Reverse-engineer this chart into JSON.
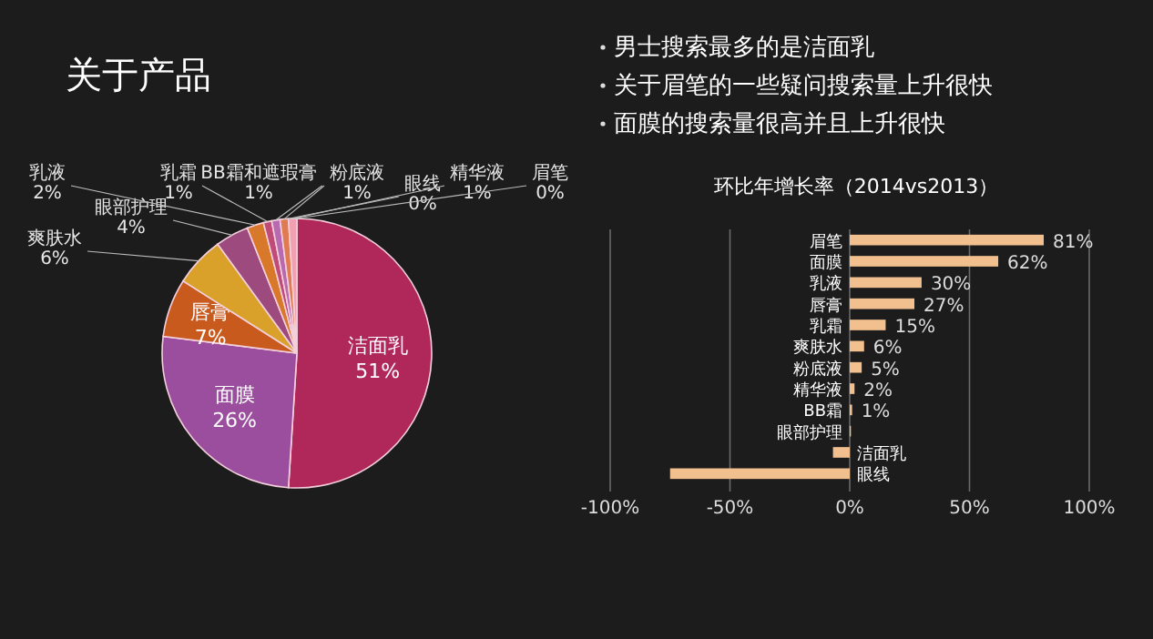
{
  "chart_data": [
    {
      "type": "pie",
      "title": "关于产品",
      "categories": [
        "洁面乳",
        "面膜",
        "唇膏",
        "爽肤水",
        "眼部护理",
        "乳液",
        "乳霜",
        "BB霜和遮瑕膏",
        "粉底液",
        "眼线",
        "精华液",
        "眉笔"
      ],
      "values": [
        51,
        26,
        7,
        6,
        4,
        2,
        1,
        1,
        1,
        0,
        1,
        0
      ],
      "colors": [
        "#b0285a",
        "#9b4d9e",
        "#c85a1e",
        "#d9a12a",
        "#9d4a7e",
        "#d8782a",
        "#c04a78",
        "#b86ab0",
        "#e07a50",
        "#e8b070",
        "#f0a0b0",
        "#f0d0d0"
      ],
      "value_labels": [
        "51%",
        "26%",
        "7%",
        "6%",
        "4%",
        "2%",
        "1%",
        "1%",
        "1%",
        "0%",
        "1%",
        "0%"
      ]
    },
    {
      "type": "bar",
      "orientation": "horizontal",
      "title": "环比年增长率（2014vs2013）",
      "annotations": [
        "男士搜索最多的是洁面乳",
        "关于眉笔的一些疑问搜索量上升很快",
        "面膜的搜索量很高并且上升很快"
      ],
      "categories": [
        "眉笔",
        "面膜",
        "乳液",
        "唇膏",
        "乳霜",
        "爽肤水",
        "粉底液",
        "精华液",
        "BB霜",
        "眼部护理",
        "洁面乳",
        "眼线"
      ],
      "values": [
        81,
        62,
        30,
        27,
        15,
        6,
        5,
        2,
        1,
        0.5,
        -7,
        -75
      ],
      "value_labels": [
        "81%",
        "62%",
        "30%",
        "27%",
        "15%",
        "6%",
        "5%",
        "2%",
        "1%",
        null,
        null,
        null
      ],
      "color": "#f2c08e",
      "xlim": [
        -100,
        100
      ],
      "xticks": [
        {
          "value": -100,
          "label": "-100%"
        },
        {
          "value": -50,
          "label": "-50%"
        },
        {
          "value": 0,
          "label": "0%"
        },
        {
          "value": 50,
          "label": "50%"
        },
        {
          "value": 100,
          "label": "100%"
        }
      ],
      "grid": "x"
    }
  ]
}
